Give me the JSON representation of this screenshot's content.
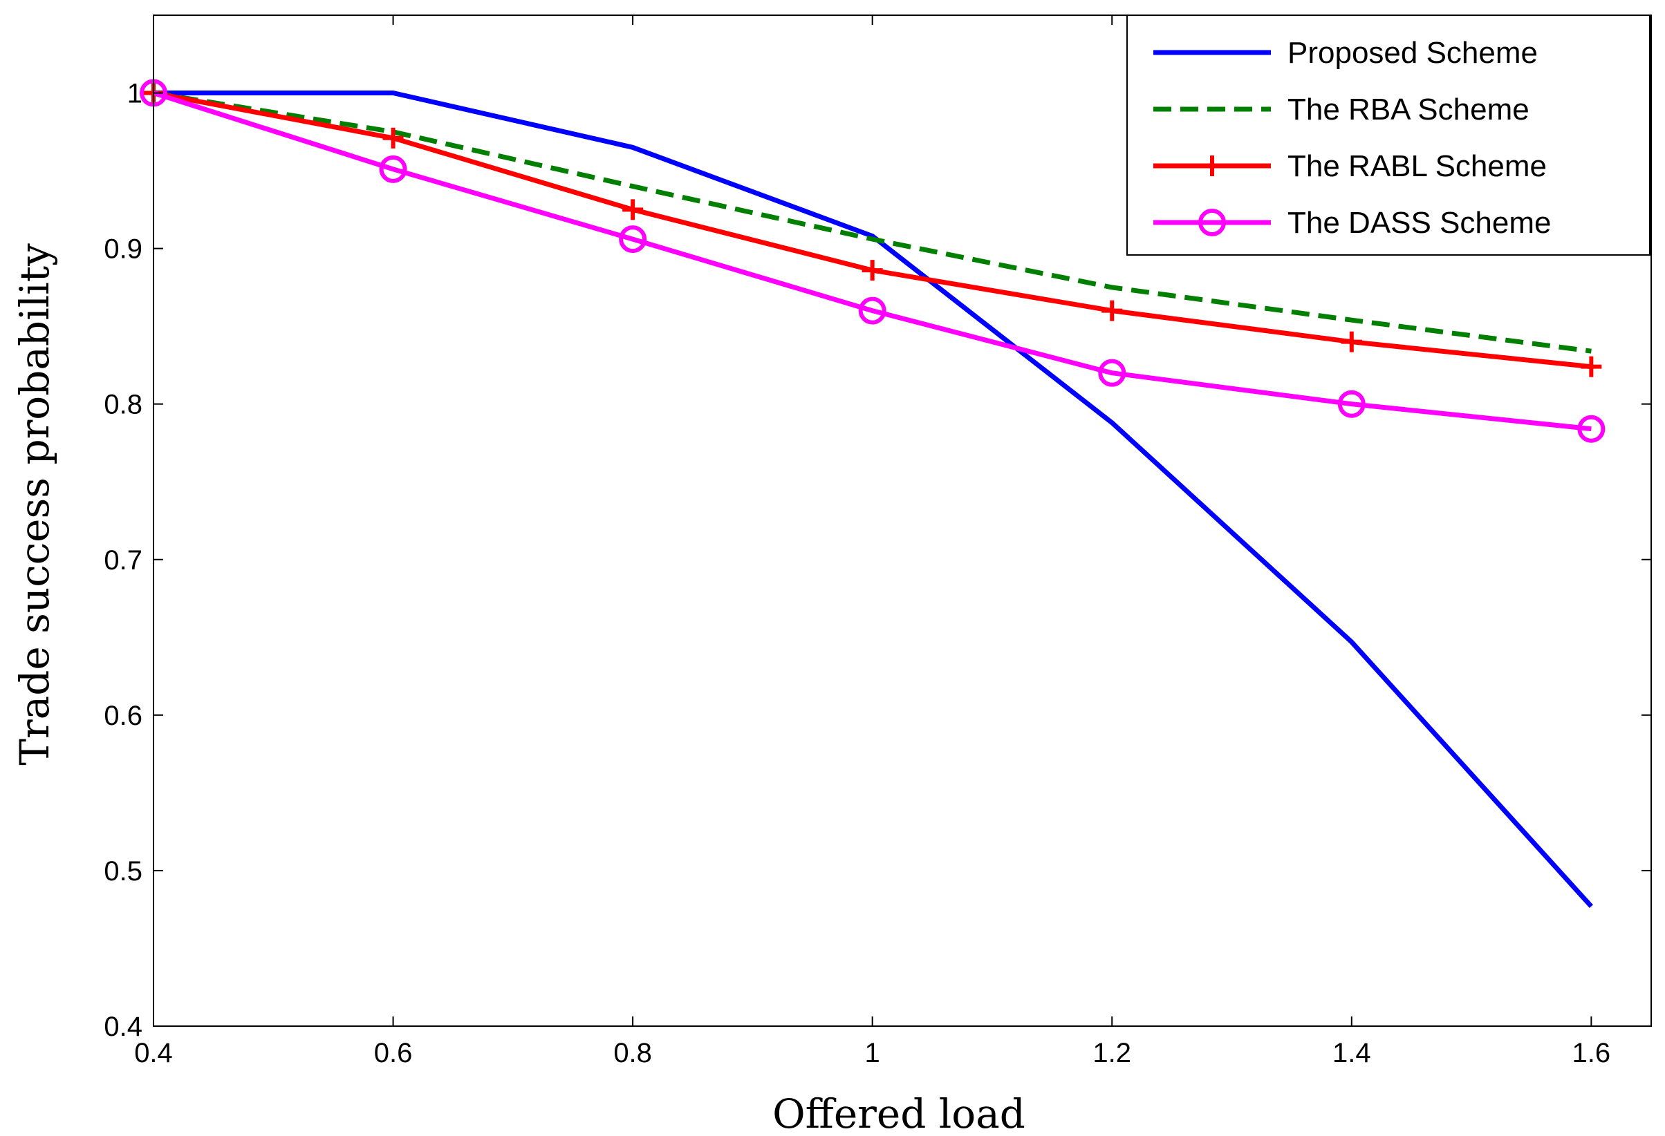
{
  "chart_data": {
    "type": "line",
    "title": "",
    "xlabel": "Offered load",
    "ylabel": "Trade success probability",
    "x": [
      0.4,
      0.6,
      0.8,
      1.0,
      1.2,
      1.4,
      1.6
    ],
    "xlim": [
      0.4,
      1.65
    ],
    "ylim": [
      0.4,
      1.05
    ],
    "xticks": [
      0.4,
      0.6,
      0.8,
      1.0,
      1.2,
      1.4,
      1.6
    ],
    "xtick_labels": [
      "0.4",
      "0.6",
      "0.8",
      "1",
      "1.2",
      "1.4",
      "1.6"
    ],
    "yticks": [
      0.4,
      0.5,
      0.6,
      0.7,
      0.8,
      0.9,
      1.0
    ],
    "ytick_labels": [
      "0.4",
      "0.5",
      "0.6",
      "0.7",
      "0.8",
      "0.9",
      "1"
    ],
    "grid": false,
    "legend_position": "top-right",
    "series": [
      {
        "name": "Proposed Scheme",
        "color": "#0000ff",
        "dash": "solid",
        "marker": "none",
        "values": [
          1.0,
          1.0,
          0.965,
          0.908,
          0.788,
          0.647,
          0.477
        ]
      },
      {
        "name": "The RBA Scheme",
        "color": "#007f00",
        "dash": "dashed",
        "marker": "none",
        "values": [
          1.0,
          0.975,
          0.94,
          0.906,
          0.875,
          0.854,
          0.834
        ]
      },
      {
        "name": "The RABL Scheme",
        "color": "#ff0000",
        "dash": "solid",
        "marker": "plus",
        "values": [
          1.0,
          0.971,
          0.925,
          0.886,
          0.86,
          0.84,
          0.824
        ]
      },
      {
        "name": "The DASS Scheme",
        "color": "#ff00ff",
        "dash": "solid",
        "marker": "circle",
        "values": [
          1.0,
          0.951,
          0.906,
          0.86,
          0.82,
          0.8,
          0.784
        ]
      }
    ]
  }
}
